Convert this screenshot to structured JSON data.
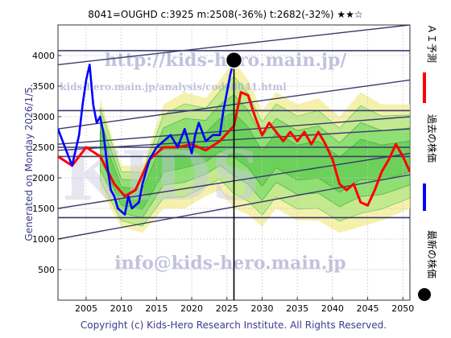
{
  "chart_data": {
    "type": "line",
    "title": "8041=OUGHD    c:3925  m:2508(-36%)  t:2682(-32%)  ★★☆",
    "ylabel": "Generated on Monday 2026/1/5.",
    "footer": "Copyright (c) Kids-Hero Research Institute. All Rights Reserved.",
    "xlim": [
      2001,
      2051
    ],
    "ylim": [
      0,
      4500
    ],
    "xticks": [
      2005,
      2010,
      2015,
      2020,
      2025,
      2030,
      2035,
      2040,
      2045,
      2050
    ],
    "yticks": [
      500,
      1000,
      1500,
      2000,
      2500,
      3000,
      3500,
      4000
    ],
    "grid": true,
    "watermarks": [
      "http://kids-hero.main.jp/",
      "kids-hero.main.jp/analysis/code8041.html",
      "KIDS",
      "info@kids-hero.main.jp"
    ],
    "legend": [
      {
        "label": "ＡＩ予測",
        "color": "#ff0000",
        "kind": "line"
      },
      {
        "label": "過去の株価",
        "color": "#0000ff",
        "kind": "line"
      },
      {
        "label": "最新の株価",
        "color": "#000000",
        "kind": "dot"
      }
    ],
    "latest_point": {
      "x": 2026.0,
      "y": 3925
    },
    "vertical_marker_x": 2026.0,
    "horizontal_lines": [
      1350,
      2350,
      2500,
      3100,
      4080
    ],
    "trend_lines": [
      {
        "x": [
          2001,
          2051
        ],
        "y": [
          1000,
          2050
        ]
      },
      {
        "x": [
          2001,
          2051
        ],
        "y": [
          1500,
          2400
        ]
      },
      {
        "x": [
          2001,
          2051
        ],
        "y": [
          2450,
          2800
        ]
      },
      {
        "x": [
          2001,
          2051
        ],
        "y": [
          2550,
          3000
        ]
      },
      {
        "x": [
          2001,
          2051
        ],
        "y": [
          2800,
          3600
        ]
      },
      {
        "x": [
          2001,
          2051
        ],
        "y": [
          3850,
          4500
        ]
      }
    ],
    "band_upper": {
      "x": [
        2007,
        2010,
        2013,
        2016,
        2019,
        2022,
        2024,
        2026,
        2028,
        2030,
        2032,
        2035,
        2038,
        2041,
        2044,
        2047,
        2051
      ],
      "y": [
        3300,
        2200,
        2200,
        3200,
        3400,
        3300,
        3600,
        3900,
        3600,
        3100,
        3400,
        3200,
        3300,
        3000,
        3400,
        3200,
        3200
      ]
    },
    "band_lower": {
      "x": [
        2007,
        2010,
        2013,
        2016,
        2019,
        2022,
        2024,
        2026,
        2028,
        2030,
        2032,
        2035,
        2038,
        2041,
        2044,
        2047,
        2051
      ],
      "y": [
        1800,
        1200,
        1100,
        1500,
        1500,
        1700,
        1800,
        1500,
        1400,
        1200,
        1500,
        1300,
        1300,
        1100,
        1200,
        1300,
        1500
      ]
    },
    "series": [
      {
        "name": "ＡＩ予測",
        "color": "#ff0000",
        "x": [
          2001,
          2003,
          2005,
          2007,
          2009,
          2010.5,
          2012,
          2014,
          2016,
          2018,
          2020,
          2022,
          2024,
          2026,
          2027,
          2028,
          2029,
          2030,
          2031,
          2032,
          2033,
          2034,
          2035,
          2036,
          2037,
          2038,
          2039,
          2040,
          2041,
          2042,
          2043,
          2044,
          2045,
          2046,
          2047,
          2048,
          2049,
          2050,
          2051
        ],
        "y": [
          2350,
          2200,
          2500,
          2350,
          1900,
          1700,
          1800,
          2300,
          2500,
          2500,
          2550,
          2450,
          2600,
          2850,
          3400,
          3350,
          3000,
          2700,
          2900,
          2750,
          2600,
          2750,
          2600,
          2750,
          2550,
          2750,
          2550,
          2300,
          1900,
          1800,
          1900,
          1600,
          1550,
          1800,
          2100,
          2300,
          2550,
          2350,
          2100
        ]
      },
      {
        "name": "過去の株価",
        "color": "#0000ff",
        "x": [
          2001,
          2002,
          2003,
          2004,
          2004.5,
          2005,
          2005.5,
          2006,
          2006.5,
          2007,
          2007.5,
          2008,
          2008.5,
          2009,
          2009.5,
          2010,
          2010.5,
          2011,
          2011.5,
          2012,
          2012.5,
          2013,
          2013.5,
          2014,
          2014.5,
          2015,
          2016,
          2017,
          2018,
          2019,
          2020,
          2020.5,
          2021,
          2022,
          2023,
          2024,
          2024.5,
          2025,
          2025.5,
          2026
        ],
        "y": [
          2800,
          2500,
          2200,
          2700,
          3200,
          3600,
          3850,
          3200,
          2900,
          3000,
          2700,
          2200,
          1800,
          1700,
          1500,
          1450,
          1400,
          1700,
          1500,
          1550,
          1600,
          1900,
          2100,
          2300,
          2400,
          2500,
          2600,
          2700,
          2500,
          2800,
          2400,
          2700,
          2900,
          2600,
          2700,
          2700,
          3100,
          3400,
          3700,
          3925
        ]
      }
    ]
  }
}
